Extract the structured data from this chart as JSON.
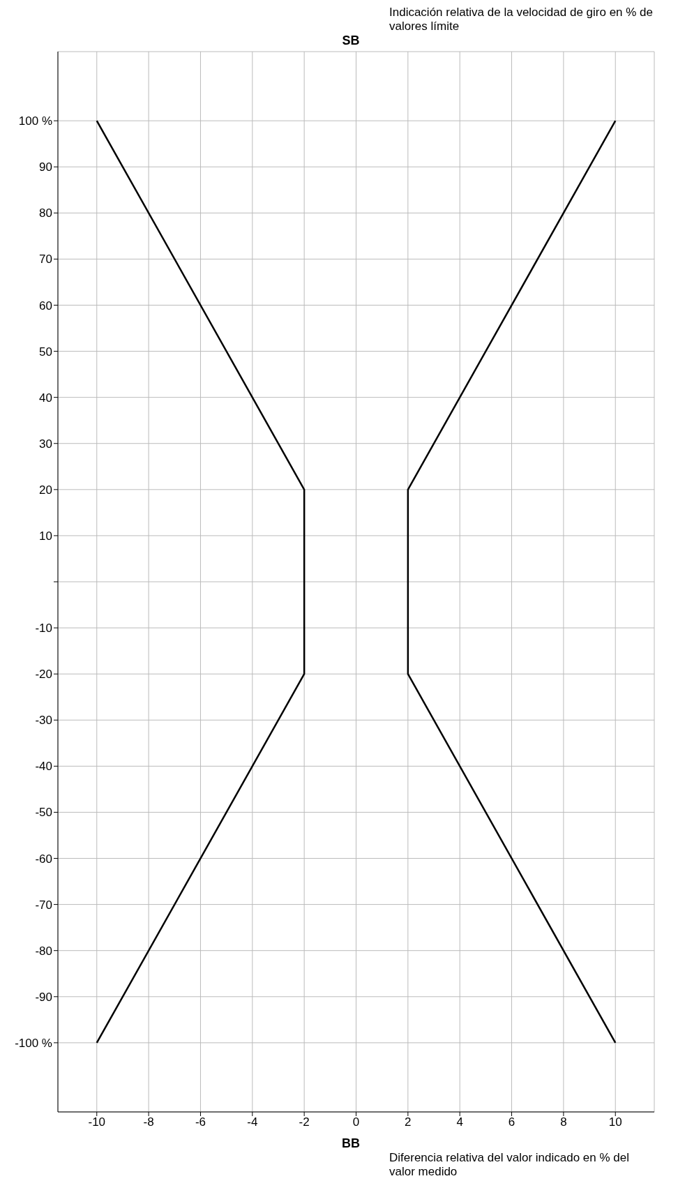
{
  "chart_data": {
    "type": "line",
    "ylabel": "Indicación relativa de la velocidad de giro en % de valores límite",
    "xlabel": "Diferencia relativa del valor indicado en % del valor medido",
    "annotations": [
      "SB",
      "BB"
    ],
    "series": [
      {
        "color": "#000000",
        "x": [
          -10,
          -2,
          -2,
          -10
        ],
        "values": [
          100,
          20,
          -20,
          -100
        ]
      },
      {
        "color": "#000000",
        "x": [
          10,
          2,
          2,
          10
        ],
        "values": [
          100,
          20,
          -20,
          -100
        ]
      }
    ],
    "xlim": [
      -11.5,
      11.5
    ],
    "xticks": [
      -10,
      -8,
      -6,
      -4,
      -2,
      0,
      2,
      4,
      6,
      8,
      10
    ],
    "ylim": [
      -115,
      115
    ],
    "yticks": [
      {
        "value": -100,
        "label": "-100 %"
      },
      -90,
      -80,
      -70,
      -60,
      -50,
      -40,
      -30,
      -20,
      -10,
      {
        "value": 0,
        "label": null
      },
      10,
      20,
      30,
      40,
      50,
      60,
      70,
      80,
      90,
      {
        "value": 100,
        "label": "100 %"
      }
    ],
    "grid": true,
    "marker": "none",
    "line_style": "solid"
  }
}
